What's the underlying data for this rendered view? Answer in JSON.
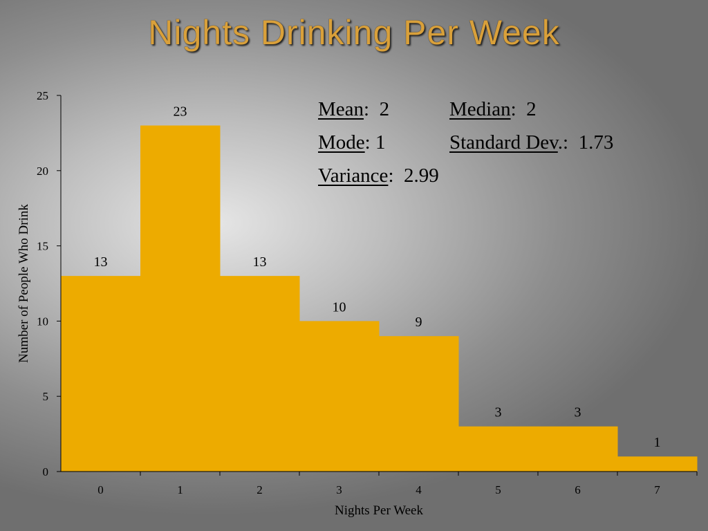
{
  "slide": {
    "title": "Nights Drinking Per Week"
  },
  "stats": {
    "mean": {
      "label": "Mean",
      "sep": ":  ",
      "value": "2"
    },
    "median": {
      "label": "Median",
      "sep": ":  ",
      "value": "2"
    },
    "mode": {
      "label": "Mode",
      "sep": ": ",
      "value": "1"
    },
    "std_dev": {
      "label": "Standard Dev",
      "sep": ".:  ",
      "value": "1.73"
    },
    "variance": {
      "label": "Variance",
      "sep": ":  ",
      "value": "2.99"
    }
  },
  "colors": {
    "bar": "#edab00",
    "axis": "#000000"
  },
  "chart_data": {
    "type": "bar",
    "title": "",
    "categories": [
      "0",
      "1",
      "2",
      "3",
      "4",
      "5",
      "6",
      "7"
    ],
    "values": [
      13,
      23,
      13,
      10,
      9,
      3,
      3,
      1
    ],
    "data_labels": [
      "13",
      "23",
      "13",
      "10",
      "9",
      "3",
      "3",
      "1"
    ],
    "xlabel": "Nights Per Week",
    "ylabel": "Number of People Who Drink",
    "ylim": [
      0,
      25
    ],
    "yticks": [
      0,
      5,
      10,
      15,
      20,
      25
    ],
    "ytick_labels": [
      "0",
      "5",
      "10",
      "15",
      "20",
      "25"
    ],
    "grid": false,
    "legend": "none"
  }
}
